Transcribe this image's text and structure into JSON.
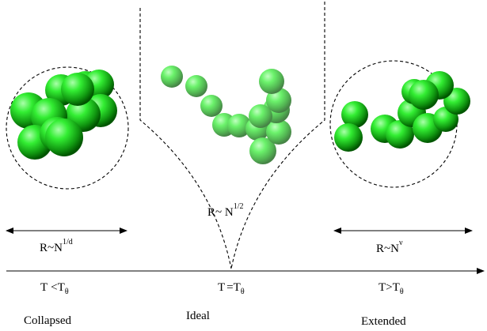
{
  "regimes": [
    {
      "scaling": {
        "base": "R~N",
        "exponent": "1/d"
      },
      "temperature": {
        "lhs": "T",
        "op": "<",
        "rhs": "T",
        "sub": "θ"
      },
      "phase_label": "Collapsed"
    },
    {
      "scaling": {
        "base": "R~ N",
        "exponent": "1/2"
      },
      "temperature": {
        "lhs": "T",
        "op": "=",
        "rhs": "T",
        "sub": "θ"
      },
      "phase_label": "Ideal"
    },
    {
      "scaling": {
        "base": "R~N",
        "exponent": "ν"
      },
      "temperature": {
        "lhs": "T",
        "op": ">",
        "rhs": "T",
        "sub": "θ"
      },
      "phase_label": "Extended"
    }
  ],
  "colors": {
    "sphere_highlight": "#aaffaa",
    "sphere_base": "#22dd22",
    "sphere_shadow": "#006600",
    "line": "#000000"
  }
}
